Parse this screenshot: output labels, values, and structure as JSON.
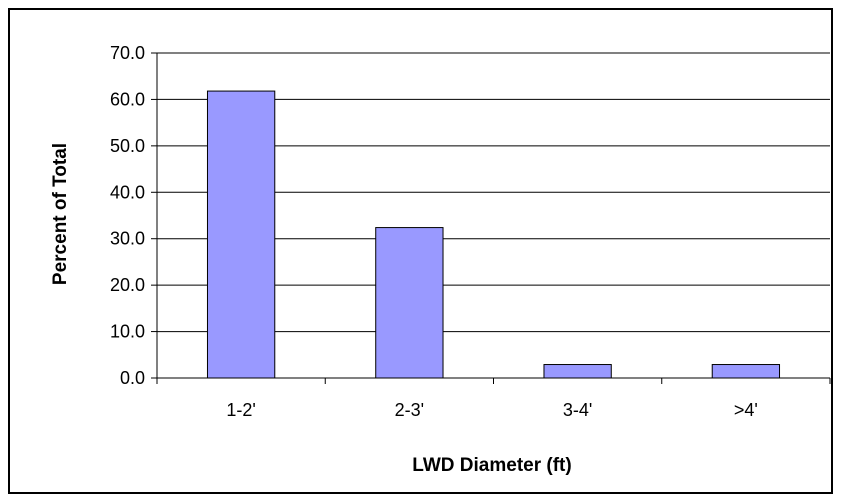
{
  "chart_data": {
    "type": "bar",
    "categories": [
      "1-2'",
      "2-3'",
      "3-4'",
      ">4'"
    ],
    "values": [
      61.8,
      32.4,
      2.9,
      2.9
    ],
    "xlabel": "LWD Diameter (ft)",
    "ylabel": "Percent of Total",
    "ylim": [
      0,
      70
    ],
    "yticks": [
      "0.0",
      "10.0",
      "20.0",
      "30.0",
      "40.0",
      "50.0",
      "60.0",
      "70.0"
    ],
    "ytick_values": [
      0,
      10,
      20,
      30,
      40,
      50,
      60,
      70
    ],
    "grid": true,
    "legend": "none",
    "colors": {
      "bar_fill": "#9999ff",
      "bar_stroke": "#000000",
      "grid": "#000000",
      "background": "#ffffff"
    }
  }
}
